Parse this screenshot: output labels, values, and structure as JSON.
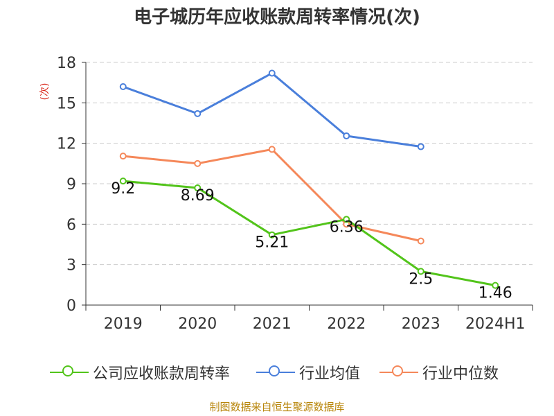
{
  "title": "电子城历年应收账款周转率情况(次)",
  "source": "制图数据来自恒生聚源数据库",
  "colors": {
    "company": "#52c41a",
    "industry_avg": "#4a7fdb",
    "industry_median": "#f5885a",
    "axis": "#333333",
    "grid": "#cccccc",
    "ylabel": "#d9281c"
  },
  "chart_data": {
    "type": "line",
    "title": "电子城历年应收账款周转率情况(次)",
    "ylabel": "(次)",
    "xlabel": "",
    "categories": [
      "2019",
      "2020",
      "2021",
      "2022",
      "2023",
      "2024H1"
    ],
    "ylim": [
      0,
      18
    ],
    "yticks": [
      0,
      3,
      6,
      9,
      12,
      15,
      18
    ],
    "grid": true,
    "legend_position": "bottom",
    "series": [
      {
        "name": "公司应收账款周转率",
        "color_key": "company",
        "values": [
          9.2,
          8.69,
          5.21,
          6.36,
          2.5,
          1.46
        ],
        "labels": [
          "9.2",
          "8.69",
          "5.21",
          "6.36",
          "2.5",
          "1.46"
        ]
      },
      {
        "name": "行业均值",
        "color_key": "industry_avg",
        "values": [
          16.2,
          14.2,
          17.2,
          12.55,
          11.75,
          null
        ]
      },
      {
        "name": "行业中位数",
        "color_key": "industry_median",
        "values": [
          11.05,
          10.5,
          11.55,
          6.0,
          4.75,
          null
        ]
      }
    ]
  }
}
